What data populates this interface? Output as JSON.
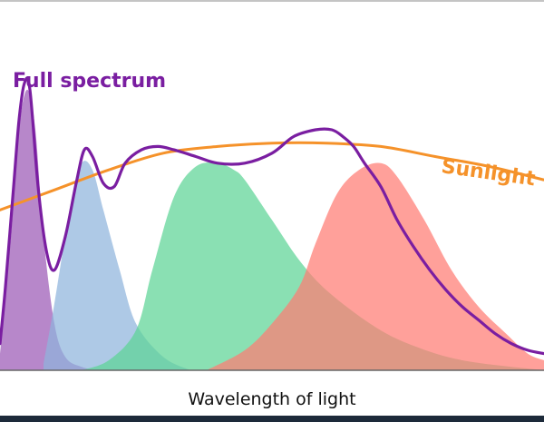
{
  "chart_data": {
    "type": "area",
    "xlabel": "Wavelength of light",
    "ylabel": "",
    "title": "",
    "x_range": [
      0,
      100
    ],
    "y_range": [
      0,
      100
    ],
    "grid": false,
    "series": [
      {
        "name": "",
        "kind": "filled-area",
        "color": "#9b59b6",
        "x": [
          0,
          2,
          3.5,
          5,
          6.5,
          8,
          10,
          12,
          15,
          18
        ],
        "y": [
          5,
          40,
          72,
          84,
          72,
          40,
          14,
          4,
          1,
          0
        ]
      },
      {
        "name": "",
        "kind": "filled-area",
        "color": "#8fb4dc",
        "x": [
          8,
          10,
          13,
          15,
          17,
          19,
          22,
          25,
          30,
          35
        ],
        "y": [
          2,
          20,
          50,
          62,
          60,
          48,
          30,
          14,
          4,
          0
        ]
      },
      {
        "name": "",
        "kind": "filled-area",
        "color": "#5dd495",
        "x": [
          15,
          20,
          25,
          28,
          32,
          36,
          40,
          43,
          45,
          50,
          55,
          60,
          68,
          75,
          85,
          100
        ],
        "y": [
          0,
          3,
          12,
          30,
          52,
          61,
          62,
          60,
          57,
          45,
          33,
          24,
          14,
          8,
          3,
          0
        ]
      },
      {
        "name": "",
        "kind": "filled-area",
        "color": "#ff7b73",
        "x": [
          38,
          45,
          50,
          55,
          58,
          62,
          66,
          70,
          73,
          78,
          83,
          88,
          93,
          97,
          100
        ],
        "y": [
          0,
          6,
          14,
          25,
          38,
          53,
          60,
          62,
          58,
          45,
          30,
          19,
          11,
          5,
          3
        ]
      },
      {
        "name": "Sunlight",
        "kind": "line",
        "color": "#f5922a",
        "x": [
          0,
          10,
          20,
          30,
          40,
          50,
          60,
          70,
          80,
          90,
          100
        ],
        "y": [
          48,
          54,
          60,
          65,
          67,
          68,
          68,
          67,
          64,
          61,
          57
        ]
      },
      {
        "name": "Full spectrum",
        "kind": "line",
        "color": "#7a1ea1",
        "x": [
          0,
          1,
          2.5,
          3.5,
          4.5,
          5.5,
          7,
          8.5,
          10,
          12,
          14,
          15.5,
          17,
          19,
          21,
          23,
          26,
          29,
          32,
          36,
          40,
          45,
          50,
          54,
          58,
          61,
          63,
          65,
          67,
          70,
          73,
          76,
          79,
          82,
          85,
          88,
          91,
          94,
          97,
          100
        ],
        "y": [
          8,
          25,
          55,
          75,
          86,
          84,
          55,
          36,
          30,
          40,
          56,
          66,
          64,
          56,
          55,
          62,
          66,
          67,
          66,
          64,
          62,
          62,
          65,
          70,
          72,
          72,
          70,
          67,
          62,
          55,
          45,
          37,
          30,
          24,
          19,
          15,
          11,
          8,
          6,
          5
        ]
      }
    ]
  }
}
